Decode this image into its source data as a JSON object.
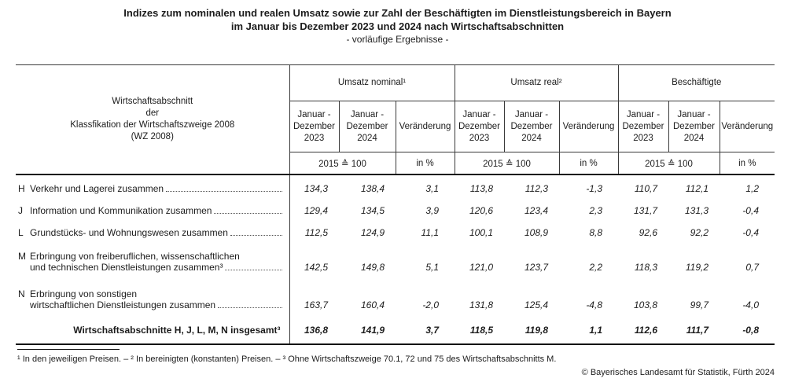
{
  "title": {
    "line1": "Indizes zum nominalen und realen Umsatz sowie zur Zahl der Beschäftigten im Dienstleistungsbereich in Bayern",
    "line2": "im Januar bis Dezember 2023 und 2024 nach Wirtschaftsabschnitten",
    "line3": "- vorläufige Ergebnisse -"
  },
  "table": {
    "stub_header": "Wirtschaftsabschnitt\nder\nKlassfikation der Wirtschaftszweige 2008\n(WZ 2008)",
    "groups": [
      {
        "label": "Umsatz nominal¹"
      },
      {
        "label": "Umsatz real²"
      },
      {
        "label": "Beschäftigte"
      }
    ],
    "sub_headers": {
      "y2023": "Januar -\nDezember\n2023",
      "y2024": "Januar -\nDezember\n2024",
      "change": "Veränderung"
    },
    "units": {
      "index": "2015 ≙ 100",
      "percent": "in %"
    },
    "rows": [
      {
        "letter": "H",
        "label1": "Verkehr und Lagerei zusammen",
        "label2": null,
        "values": [
          "134,3",
          "138,4",
          "3,1",
          "113,8",
          "112,3",
          "-1,3",
          "110,7",
          "112,1",
          "1,2"
        ]
      },
      {
        "letter": "J",
        "label1": "Information und Kommunikation zusammen",
        "label2": null,
        "values": [
          "129,4",
          "134,5",
          "3,9",
          "120,6",
          "123,4",
          "2,3",
          "131,7",
          "131,3",
          "-0,4"
        ]
      },
      {
        "letter": "L",
        "label1": "Grundstücks- und Wohnungswesen zusammen",
        "label2": null,
        "values": [
          "112,5",
          "124,9",
          "11,1",
          "100,1",
          "108,9",
          "8,8",
          "92,6",
          "92,2",
          "-0,4"
        ]
      },
      {
        "letter": "M",
        "label1": "Erbringung von freiberuflichen, wissenschaftlichen",
        "label2": "und technischen Dienstleistungen zusammen³",
        "values": [
          "142,5",
          "149,8",
          "5,1",
          "121,0",
          "123,7",
          "2,2",
          "118,3",
          "119,2",
          "0,7"
        ]
      },
      {
        "letter": "N",
        "label1": "Erbringung von sonstigen",
        "label2": "wirtschaftlichen Dienstleistungen zusammen",
        "values": [
          "163,7",
          "160,4",
          "-2,0",
          "131,8",
          "125,4",
          "-4,8",
          "103,8",
          "99,7",
          "-4,0"
        ]
      },
      {
        "total": true,
        "label": "Wirtschaftsabschnitte H, J, L, M, N insgesamt³",
        "values": [
          "136,8",
          "141,9",
          "3,7",
          "118,5",
          "119,8",
          "1,1",
          "112,6",
          "111,7",
          "-0,8"
        ]
      }
    ]
  },
  "footnote": "¹ In den jeweiligen Preisen. – ² In bereinigten (konstanten) Preisen. – ³ Ohne Wirtschaftszweige 70.1, 72 und 75 des Wirtschaftsabschnitts M.",
  "copyright": "© Bayerisches Landesamt für Statistik, Fürth 2024"
}
